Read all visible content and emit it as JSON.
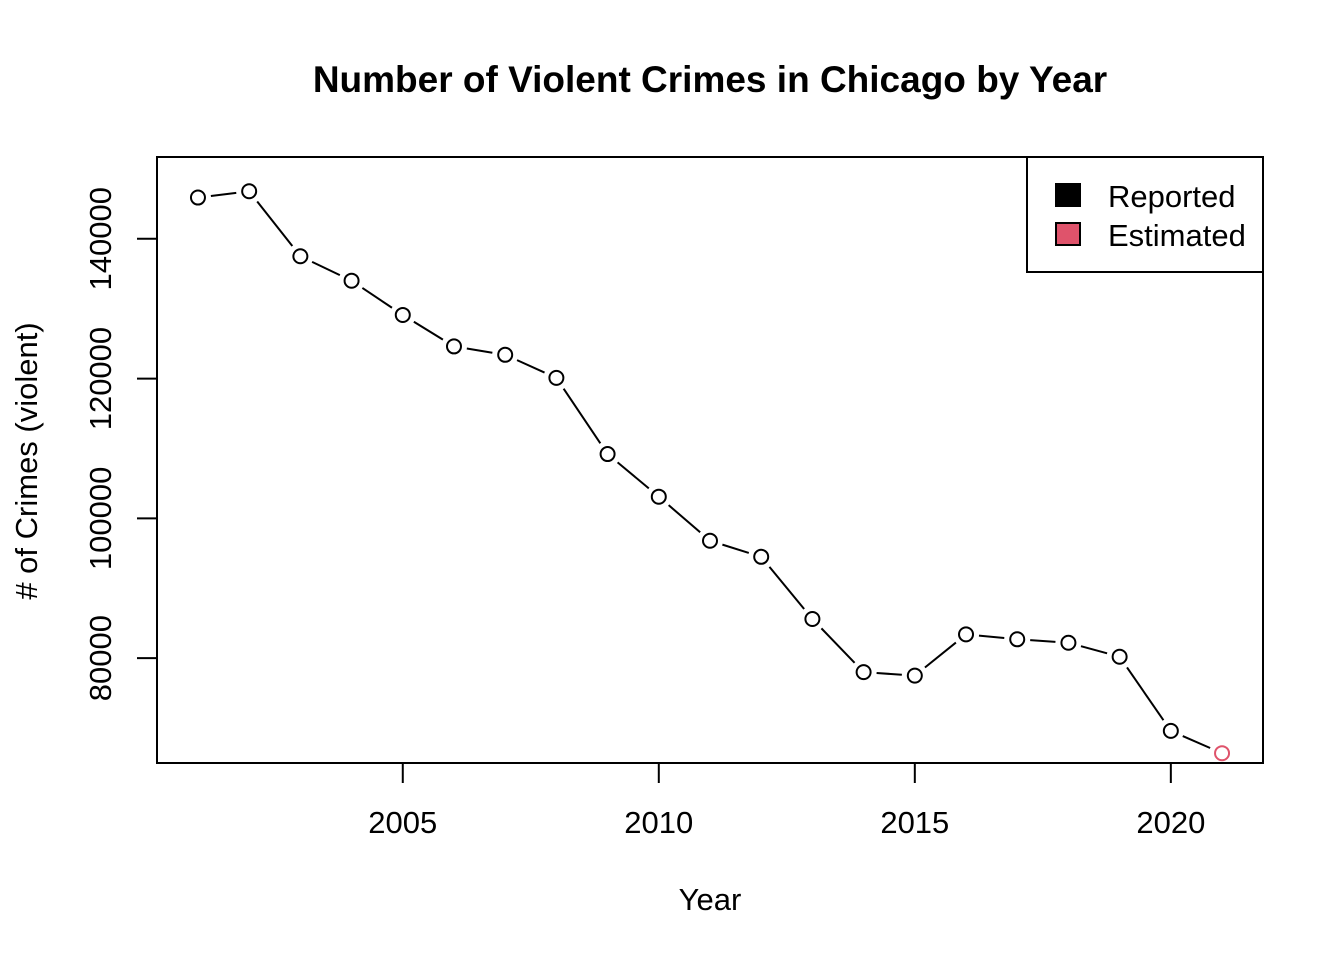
{
  "chart_data": {
    "type": "line",
    "title": "Number of Violent Crimes in Chicago by Year",
    "xlabel": "Year",
    "ylabel": "# of Crimes (violent)",
    "xlim": [
      2000.2,
      2021.8
    ],
    "ylim": [
      65000,
      151700
    ],
    "x_ticks": [
      2005,
      2010,
      2015,
      2020
    ],
    "y_ticks": [
      80000,
      100000,
      120000,
      140000
    ],
    "grid": false,
    "legend_position": "top-right",
    "legend": [
      {
        "label": "Reported",
        "color": "#000000"
      },
      {
        "label": "Estimated",
        "color": "#df536b"
      }
    ],
    "x": [
      2001,
      2002,
      2003,
      2004,
      2005,
      2006,
      2007,
      2008,
      2009,
      2010,
      2011,
      2012,
      2013,
      2014,
      2015,
      2016,
      2017,
      2018,
      2019,
      2020,
      2021
    ],
    "values": [
      145900,
      146800,
      137500,
      134000,
      129100,
      124600,
      123400,
      120100,
      109200,
      103100,
      96800,
      94500,
      85600,
      78000,
      77500,
      83400,
      82700,
      82200,
      80200,
      69600,
      66400
    ],
    "point_status": [
      "Reported",
      "Reported",
      "Reported",
      "Reported",
      "Reported",
      "Reported",
      "Reported",
      "Reported",
      "Reported",
      "Reported",
      "Reported",
      "Reported",
      "Reported",
      "Reported",
      "Reported",
      "Reported",
      "Reported",
      "Reported",
      "Reported",
      "Reported",
      "Estimated"
    ]
  }
}
